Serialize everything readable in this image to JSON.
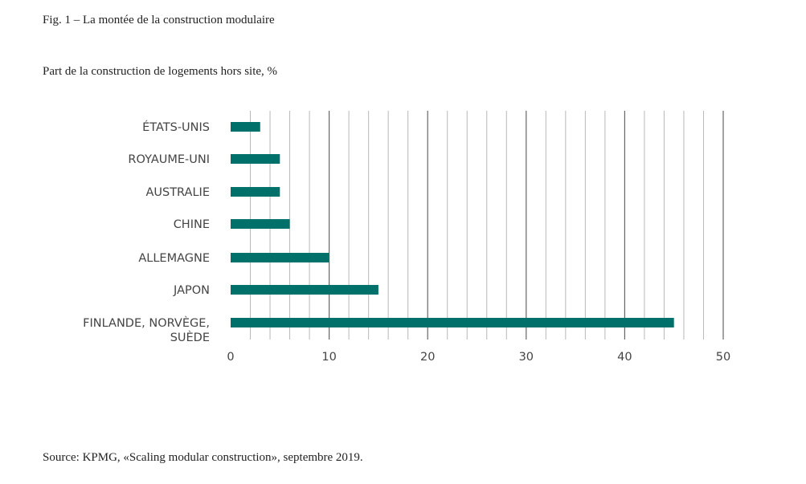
{
  "figure": {
    "title": "Fig. 1 – La montée de la construction modulaire",
    "subtitle": "Part de la construction de logements hors site, %",
    "source": "Source: KPMG, «Scaling modular construction», septembre 2019."
  },
  "chart_data": {
    "type": "bar",
    "orientation": "horizontal",
    "categories": [
      [
        "ÉTATS-UNIS"
      ],
      [
        "ROYAUME-UNI"
      ],
      [
        "AUSTRALIE"
      ],
      [
        "CHINE"
      ],
      [
        "ALLEMAGNE"
      ],
      [
        "JAPON"
      ],
      [
        "FINLANDE, NORVÈGE,",
        "SUÈDE"
      ]
    ],
    "values": [
      3,
      5,
      5,
      6,
      10,
      15,
      45
    ],
    "xlim": [
      0,
      50
    ],
    "xticks": [
      0,
      10,
      20,
      30,
      40,
      50
    ],
    "minor_grid_step": 2,
    "grid": true,
    "colors": {
      "bar": "#00706b",
      "major_grid": "#666666",
      "minor_grid": "#b8b8b8"
    }
  }
}
